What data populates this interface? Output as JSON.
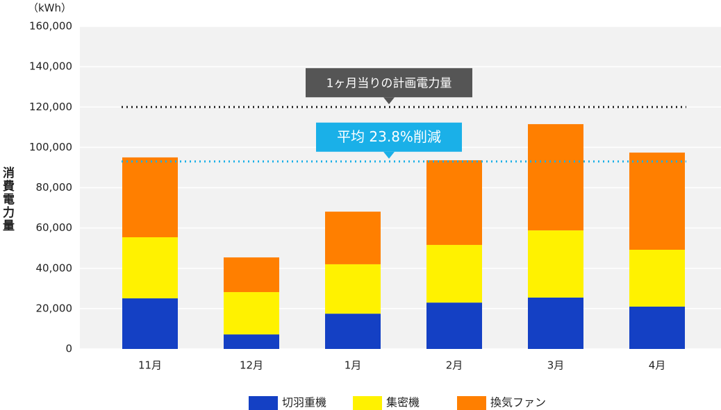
{
  "chart_data": {
    "type": "stacked_bar",
    "unit_label": "（kWh）",
    "y_label": "消費電力量",
    "categories": [
      "11月",
      "12月",
      "1月",
      "2月",
      "3月",
      "4月"
    ],
    "series": [
      {
        "name": "切羽重機",
        "color": "#1440c4",
        "values": [
          25100,
          7200,
          17500,
          23000,
          25500,
          21000
        ]
      },
      {
        "name": "集密機",
        "color": "#fff200",
        "values": [
          30300,
          21000,
          24500,
          28600,
          33300,
          28200
        ]
      },
      {
        "name": "換気ファン",
        "color": "#ff7f00",
        "values": [
          39600,
          17200,
          26100,
          42000,
          52700,
          48200
        ]
      }
    ],
    "ylim": [
      0,
      160000
    ],
    "yticks": [
      0,
      {
        "value": 20000,
        "label": "20,000"
      },
      {
        "value": 40000,
        "label": "40,000"
      },
      {
        "value": 60000,
        "label": "60,000"
      },
      {
        "value": 80000,
        "label": "80,000"
      },
      {
        "value": 100000,
        "label": "100,000"
      },
      {
        "value": 120000,
        "label": "120,000"
      },
      {
        "value": 140000,
        "label": "140,000"
      },
      {
        "value": 160000,
        "label": "160,000"
      }
    ],
    "grid": true,
    "reference_lines": [
      {
        "value": 120000,
        "label": "1ヶ月当りの計画電力量",
        "color": "#222222",
        "box_color": "#555555"
      },
      {
        "value": 93000,
        "label": "平均 23.8%削減",
        "color": "#1ab0e8",
        "box_color": "#1ab0e8"
      }
    ],
    "legend": "bottom"
  }
}
